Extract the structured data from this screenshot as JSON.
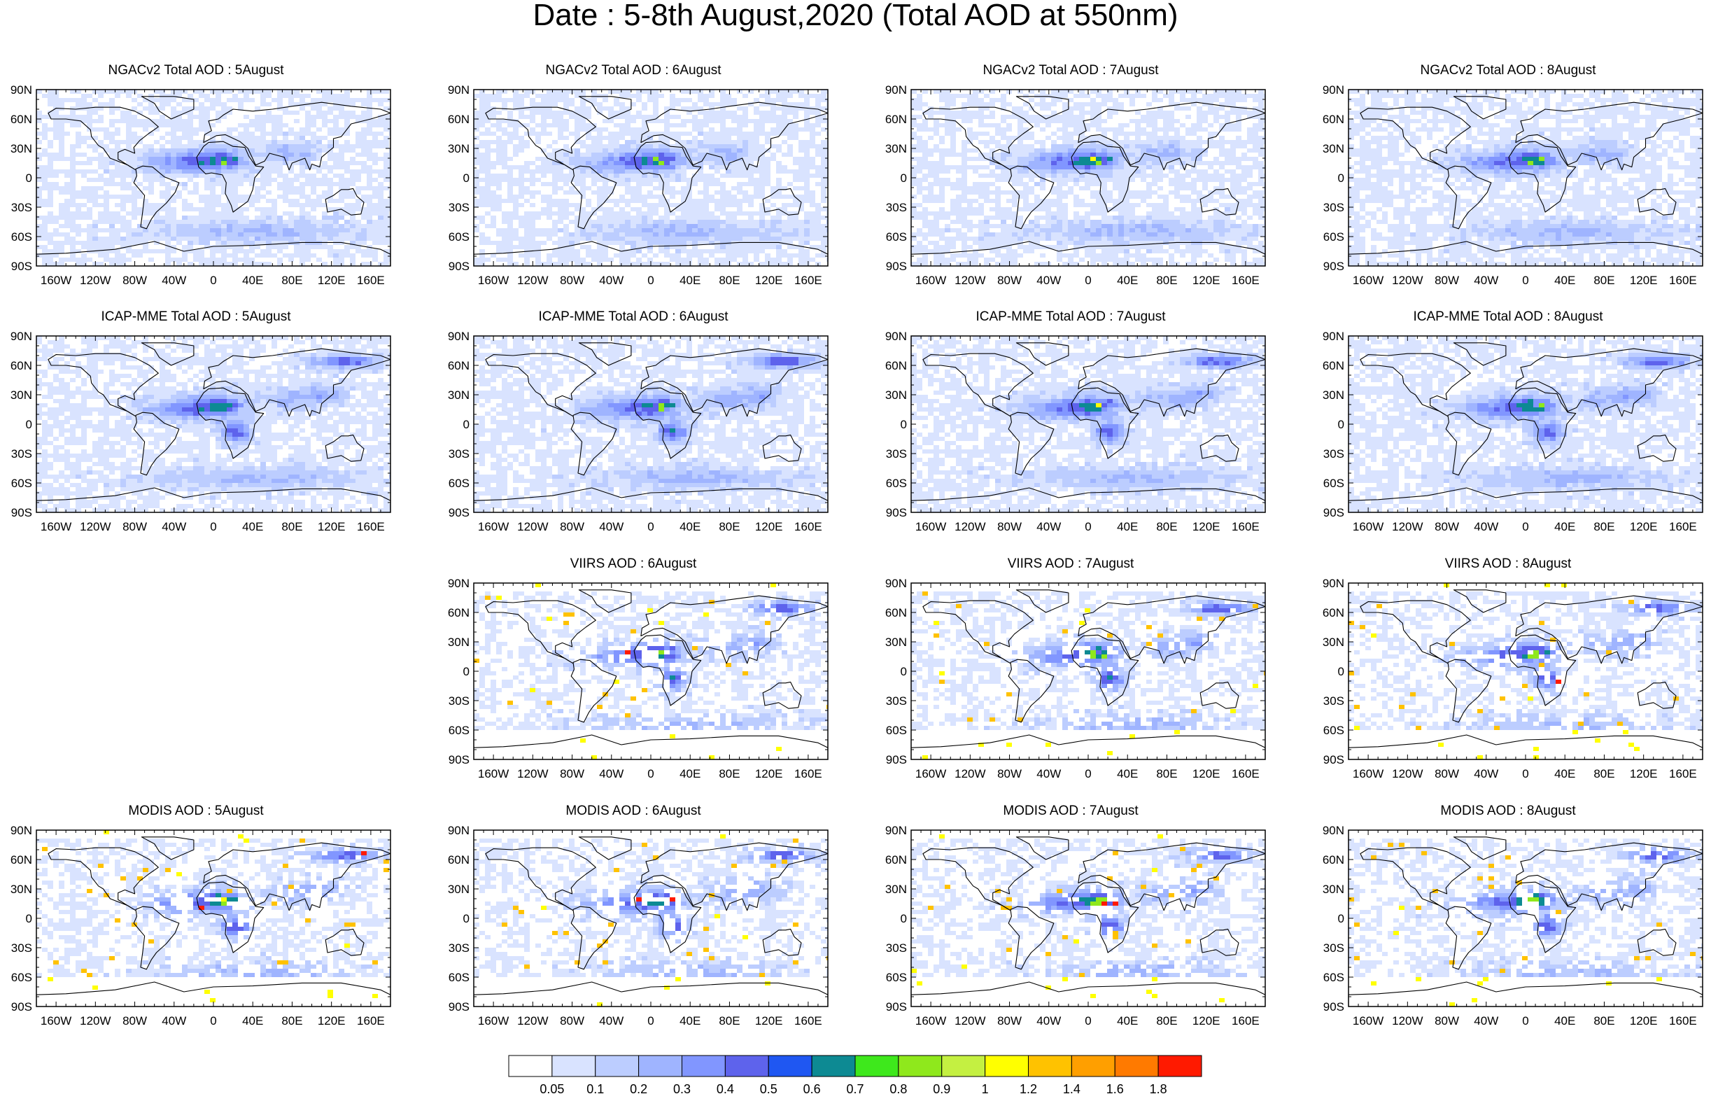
{
  "title": "Date : 5-8th August,2020 (Total AOD at 550nm)",
  "lat_labels": [
    "90N",
    "60N",
    "30N",
    "0",
    "30S",
    "60S",
    "90S"
  ],
  "lon_labels": [
    "160W",
    "120W",
    "80W",
    "40W",
    "0",
    "40E",
    "80E",
    "120E",
    "160E"
  ],
  "panels": [
    {
      "row": 0,
      "col": 0,
      "title": "NGACv2 Total AOD : 5August",
      "product": "ngac"
    },
    {
      "row": 0,
      "col": 1,
      "title": "NGACv2 Total AOD : 6August",
      "product": "ngac"
    },
    {
      "row": 0,
      "col": 2,
      "title": "NGACv2 Total AOD : 7August",
      "product": "ngac"
    },
    {
      "row": 0,
      "col": 3,
      "title": "NGACv2 Total AOD : 8August",
      "product": "ngac"
    },
    {
      "row": 1,
      "col": 0,
      "title": "ICAP-MME Total AOD : 5August",
      "product": "icap"
    },
    {
      "row": 1,
      "col": 1,
      "title": "ICAP-MME Total AOD : 6August",
      "product": "icap"
    },
    {
      "row": 1,
      "col": 2,
      "title": "ICAP-MME Total AOD : 7August",
      "product": "icap"
    },
    {
      "row": 1,
      "col": 3,
      "title": "ICAP-MME Total AOD : 8August",
      "product": "icap"
    },
    {
      "row": 2,
      "col": 1,
      "title": "VIIRS AOD : 6August",
      "product": "viirs"
    },
    {
      "row": 2,
      "col": 2,
      "title": "VIIRS AOD : 7August",
      "product": "viirs"
    },
    {
      "row": 2,
      "col": 3,
      "title": "VIIRS AOD : 8August",
      "product": "viirs"
    },
    {
      "row": 3,
      "col": 0,
      "title": "MODIS AOD : 5August",
      "product": "modis"
    },
    {
      "row": 3,
      "col": 1,
      "title": "MODIS AOD : 6August",
      "product": "modis"
    },
    {
      "row": 3,
      "col": 2,
      "title": "MODIS AOD : 7August",
      "product": "modis"
    },
    {
      "row": 3,
      "col": 3,
      "title": "MODIS AOD : 8August",
      "product": "modis"
    }
  ],
  "colorbar": {
    "labels": [
      "0.05",
      "0.1",
      "0.2",
      "0.3",
      "0.4",
      "0.5",
      "0.6",
      "0.7",
      "0.8",
      "0.9",
      "1",
      "1.2",
      "1.4",
      "1.6",
      "1.8"
    ],
    "colors": [
      "#ffffff",
      "#d9e3ff",
      "#bccdff",
      "#9fb4ff",
      "#8196ff",
      "#5e63ec",
      "#1f57f2",
      "#0d8a93",
      "#3ee81c",
      "#8fe81c",
      "#c4f041",
      "#ffff00",
      "#ffc200",
      "#ff9f00",
      "#ff7a00",
      "#ff1a00"
    ]
  }
}
